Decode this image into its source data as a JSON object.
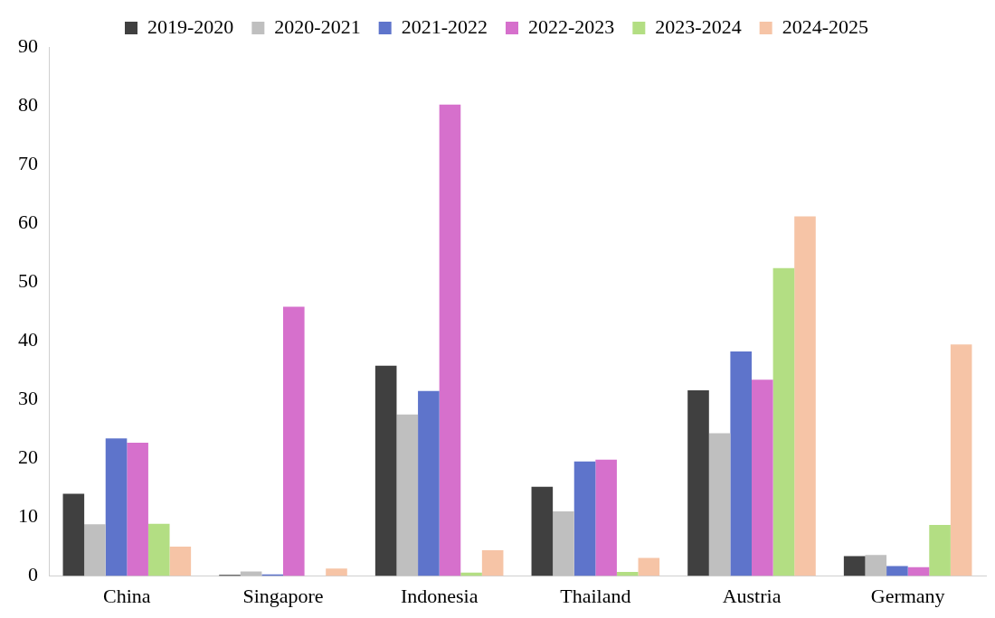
{
  "chart_data": {
    "type": "bar",
    "categories": [
      "China",
      "Singapore",
      "Indonesia",
      "Thailand",
      "Austria",
      "Germany"
    ],
    "series": [
      {
        "name": "2019-2020",
        "color": "#404040",
        "values": [
          14.0,
          0.2,
          35.8,
          15.2,
          31.6,
          3.4
        ]
      },
      {
        "name": "2020-2021",
        "color": "#bfbfbf",
        "values": [
          8.8,
          0.8,
          27.5,
          11.0,
          24.3,
          3.6
        ]
      },
      {
        "name": "2021-2022",
        "color": "#5e74cb",
        "values": [
          23.4,
          0.3,
          31.5,
          19.5,
          38.2,
          1.7
        ]
      },
      {
        "name": "2022-2023",
        "color": "#d670cc",
        "values": [
          22.7,
          45.8,
          80.2,
          19.8,
          33.4,
          1.5
        ]
      },
      {
        "name": "2023-2024",
        "color": "#b3de83",
        "values": [
          8.9,
          null,
          0.6,
          0.7,
          52.4,
          8.7
        ]
      },
      {
        "name": "2024-2025",
        "color": "#f6c4a6",
        "values": [
          5.0,
          1.3,
          4.4,
          3.1,
          61.2,
          39.4
        ]
      }
    ],
    "ylim": [
      0,
      90
    ],
    "yticks": [
      0,
      10,
      20,
      30,
      40,
      50,
      60,
      70,
      80,
      90
    ],
    "grid": false,
    "legend": "top"
  }
}
